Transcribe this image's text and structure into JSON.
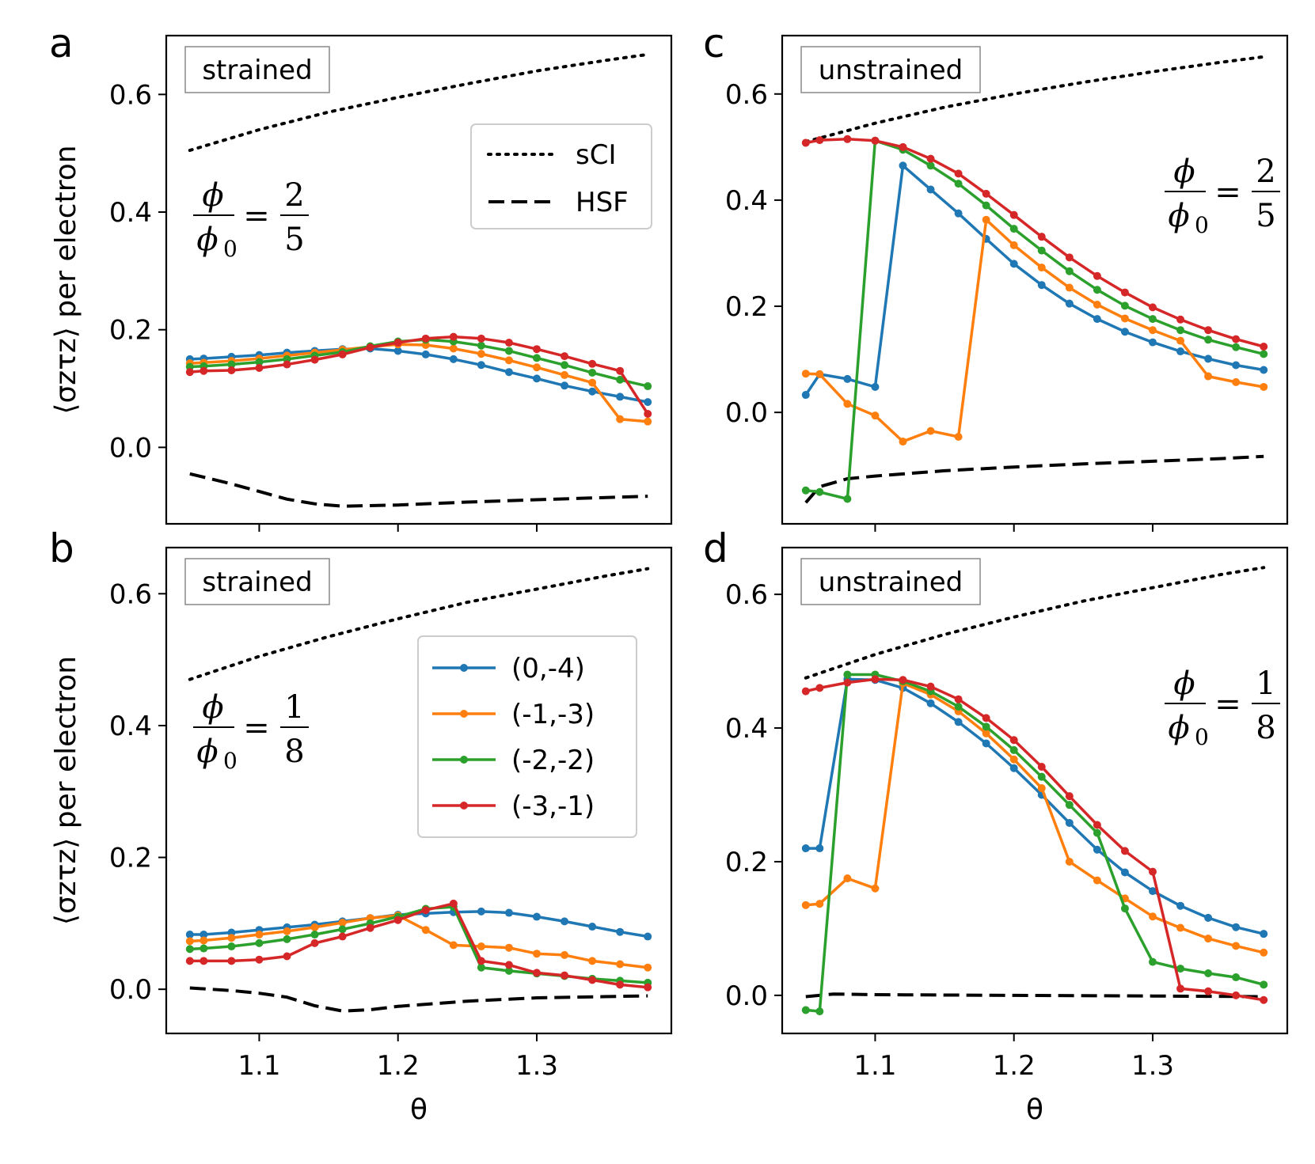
{
  "chart_data": [
    {
      "type": "line",
      "panel": "a",
      "condition": "strained",
      "flux": {
        "numerator": "2",
        "denominator": "5"
      },
      "xlabel": "θ",
      "ylabel": "⟨σzτz⟩ per electron",
      "xlim": [
        1.033,
        1.397
      ],
      "ylim": [
        -0.13,
        0.7
      ],
      "xticks": [
        1.1,
        1.2,
        1.3
      ],
      "yticks": [
        0.0,
        0.2,
        0.4,
        0.6
      ],
      "xticklabels": [
        "1.1",
        "1.2",
        "1.3"
      ],
      "yticklabels": [
        "0.0",
        "0.2",
        "0.4",
        "0.6"
      ],
      "x": [
        1.05,
        1.06,
        1.08,
        1.1,
        1.12,
        1.14,
        1.16,
        1.18,
        1.2,
        1.22,
        1.24,
        1.26,
        1.28,
        1.3,
        1.32,
        1.34,
        1.36,
        1.38
      ],
      "series": [
        {
          "name": "(0,-4)",
          "color": "#1f77b4",
          "values": [
            0.15,
            0.151,
            0.154,
            0.157,
            0.161,
            0.164,
            0.167,
            0.168,
            0.164,
            0.158,
            0.15,
            0.14,
            0.128,
            0.117,
            0.105,
            0.095,
            0.086,
            0.077
          ]
        },
        {
          "name": "(-1,-3)",
          "color": "#ff7f0e",
          "values": [
            0.143,
            0.144,
            0.147,
            0.151,
            0.156,
            0.161,
            0.166,
            0.171,
            0.175,
            0.174,
            0.168,
            0.159,
            0.148,
            0.136,
            0.123,
            0.11,
            0.048,
            0.044
          ]
        },
        {
          "name": "(-2,-2)",
          "color": "#2ca02c",
          "values": [
            0.137,
            0.138,
            0.141,
            0.145,
            0.15,
            0.156,
            0.162,
            0.172,
            0.18,
            0.183,
            0.18,
            0.173,
            0.164,
            0.152,
            0.14,
            0.127,
            0.115,
            0.104
          ]
        },
        {
          "name": "(-3,-1)",
          "color": "#d62728",
          "values": [
            0.128,
            0.13,
            0.131,
            0.135,
            0.141,
            0.149,
            0.158,
            0.17,
            0.178,
            0.185,
            0.188,
            0.185,
            0.178,
            0.167,
            0.155,
            0.142,
            0.13,
            0.057
          ]
        }
      ],
      "references": [
        {
          "name": "sCI",
          "style": "dotted",
          "x": [
            1.05,
            1.1,
            1.15,
            1.2,
            1.25,
            1.3,
            1.35,
            1.38
          ],
          "values": [
            0.505,
            0.54,
            0.57,
            0.595,
            0.618,
            0.64,
            0.658,
            0.668
          ]
        },
        {
          "name": "HSF",
          "style": "dashed",
          "x": [
            1.05,
            1.08,
            1.1,
            1.12,
            1.14,
            1.16,
            1.2,
            1.25,
            1.3,
            1.38
          ],
          "values": [
            -0.045,
            -0.062,
            -0.075,
            -0.088,
            -0.096,
            -0.1,
            -0.098,
            -0.093,
            -0.089,
            -0.083
          ]
        }
      ],
      "legend": {
        "position": "upper-right",
        "entries": [
          "sCI",
          "HSF"
        ]
      }
    },
    {
      "type": "line",
      "panel": "b",
      "condition": "strained",
      "flux": {
        "numerator": "1",
        "denominator": "8"
      },
      "xlabel": "θ",
      "ylabel": "⟨σzτz⟩ per electron",
      "xlim": [
        1.033,
        1.397
      ],
      "ylim": [
        -0.067,
        0.67
      ],
      "xticks": [
        1.1,
        1.2,
        1.3
      ],
      "yticks": [
        0.0,
        0.2,
        0.4,
        0.6
      ],
      "xticklabels": [
        "1.1",
        "1.2",
        "1.3"
      ],
      "yticklabels": [
        "0.0",
        "0.2",
        "0.4",
        "0.6"
      ],
      "x": [
        1.05,
        1.06,
        1.08,
        1.1,
        1.12,
        1.14,
        1.16,
        1.18,
        1.2,
        1.22,
        1.24,
        1.26,
        1.28,
        1.3,
        1.32,
        1.34,
        1.36,
        1.38
      ],
      "series": [
        {
          "name": "(0,-4)",
          "color": "#1f77b4",
          "values": [
            0.083,
            0.083,
            0.086,
            0.09,
            0.094,
            0.098,
            0.103,
            0.108,
            0.113,
            0.115,
            0.117,
            0.118,
            0.116,
            0.11,
            0.103,
            0.095,
            0.087,
            0.08
          ]
        },
        {
          "name": "(-1,-3)",
          "color": "#ff7f0e",
          "values": [
            0.073,
            0.074,
            0.078,
            0.083,
            0.088,
            0.094,
            0.101,
            0.108,
            0.112,
            0.09,
            0.067,
            0.065,
            0.063,
            0.054,
            0.052,
            0.043,
            0.038,
            0.033
          ]
        },
        {
          "name": "(-2,-2)",
          "color": "#2ca02c",
          "values": [
            0.061,
            0.062,
            0.065,
            0.07,
            0.076,
            0.083,
            0.091,
            0.1,
            0.11,
            0.122,
            0.125,
            0.033,
            0.028,
            0.024,
            0.02,
            0.016,
            0.013,
            0.01
          ]
        },
        {
          "name": "(-3,-1)",
          "color": "#d62728",
          "values": [
            0.043,
            0.043,
            0.043,
            0.045,
            0.05,
            0.07,
            0.08,
            0.093,
            0.105,
            0.12,
            0.13,
            0.043,
            0.037,
            0.025,
            0.021,
            0.014,
            0.007,
            0.003
          ]
        }
      ],
      "references": [
        {
          "name": "sCI",
          "style": "dotted",
          "x": [
            1.05,
            1.1,
            1.15,
            1.2,
            1.25,
            1.3,
            1.35,
            1.38
          ],
          "values": [
            0.47,
            0.505,
            0.535,
            0.562,
            0.587,
            0.607,
            0.627,
            0.638
          ]
        },
        {
          "name": "HSF",
          "style": "dashed",
          "x": [
            1.05,
            1.08,
            1.1,
            1.12,
            1.14,
            1.16,
            1.18,
            1.2,
            1.25,
            1.3,
            1.38
          ],
          "values": [
            0.002,
            -0.002,
            -0.006,
            -0.012,
            -0.025,
            -0.033,
            -0.031,
            -0.026,
            -0.018,
            -0.013,
            -0.01
          ]
        }
      ],
      "legend": {
        "position": "upper-right",
        "entries": [
          "(0,-4)",
          "(-1,-3)",
          "(-2,-2)",
          "(-3,-1)"
        ]
      }
    },
    {
      "type": "line",
      "panel": "c",
      "condition": "unstrained",
      "flux": {
        "numerator": "2",
        "denominator": "5"
      },
      "xlabel": "θ",
      "ylabel": "",
      "xlim": [
        1.033,
        1.397
      ],
      "ylim": [
        -0.21,
        0.71
      ],
      "xticks": [
        1.1,
        1.2,
        1.3
      ],
      "yticks": [
        0.0,
        0.2,
        0.4,
        0.6
      ],
      "xticklabels": [
        "1.1",
        "1.2",
        "1.3"
      ],
      "yticklabels": [
        "0.0",
        "0.2",
        "0.4",
        "0.6"
      ],
      "x": [
        1.05,
        1.06,
        1.08,
        1.1,
        1.12,
        1.14,
        1.16,
        1.18,
        1.2,
        1.22,
        1.24,
        1.26,
        1.28,
        1.3,
        1.32,
        1.34,
        1.36,
        1.38
      ],
      "series": [
        {
          "name": "(0,-4)",
          "color": "#1f77b4",
          "values": [
            0.033,
            0.072,
            0.063,
            0.048,
            0.465,
            0.42,
            0.375,
            0.327,
            0.28,
            0.24,
            0.205,
            0.176,
            0.152,
            0.132,
            0.115,
            0.101,
            0.089,
            0.08
          ]
        },
        {
          "name": "(-1,-3)",
          "color": "#ff7f0e",
          "values": [
            0.073,
            0.072,
            0.016,
            -0.006,
            -0.055,
            -0.035,
            -0.046,
            0.363,
            0.315,
            0.273,
            0.235,
            0.203,
            0.177,
            0.155,
            0.135,
            0.068,
            0.057,
            0.048
          ]
        },
        {
          "name": "(-2,-2)",
          "color": "#2ca02c",
          "values": [
            -0.147,
            -0.15,
            -0.163,
            0.512,
            0.495,
            0.465,
            0.431,
            0.39,
            0.346,
            0.305,
            0.266,
            0.231,
            0.201,
            0.176,
            0.155,
            0.137,
            0.123,
            0.11
          ]
        },
        {
          "name": "(-3,-1)",
          "color": "#d62728",
          "values": [
            0.508,
            0.513,
            0.515,
            0.512,
            0.5,
            0.478,
            0.45,
            0.412,
            0.372,
            0.331,
            0.292,
            0.257,
            0.226,
            0.198,
            0.175,
            0.155,
            0.138,
            0.124
          ]
        }
      ],
      "references": [
        {
          "name": "sCI",
          "style": "dotted",
          "x": [
            1.05,
            1.1,
            1.15,
            1.2,
            1.25,
            1.3,
            1.35,
            1.38
          ],
          "values": [
            0.51,
            0.545,
            0.575,
            0.6,
            0.622,
            0.642,
            0.66,
            0.67
          ]
        },
        {
          "name": "HSF",
          "style": "dashed",
          "x": [
            1.05,
            1.06,
            1.08,
            1.1,
            1.15,
            1.2,
            1.25,
            1.3,
            1.35,
            1.38
          ],
          "values": [
            -0.17,
            -0.14,
            -0.125,
            -0.12,
            -0.11,
            -0.103,
            -0.097,
            -0.092,
            -0.087,
            -0.083
          ]
        }
      ]
    },
    {
      "type": "line",
      "panel": "d",
      "condition": "unstrained",
      "flux": {
        "numerator": "1",
        "denominator": "8"
      },
      "xlabel": "θ",
      "ylabel": "",
      "xlim": [
        1.033,
        1.397
      ],
      "ylim": [
        -0.057,
        0.67
      ],
      "xticks": [
        1.1,
        1.2,
        1.3
      ],
      "yticks": [
        0.0,
        0.2,
        0.4,
        0.6
      ],
      "xticklabels": [
        "1.1",
        "1.2",
        "1.3"
      ],
      "yticklabels": [
        "0.0",
        "0.2",
        "0.4",
        "0.6"
      ],
      "x": [
        1.05,
        1.06,
        1.08,
        1.1,
        1.12,
        1.14,
        1.16,
        1.18,
        1.2,
        1.22,
        1.24,
        1.26,
        1.28,
        1.3,
        1.32,
        1.34,
        1.36,
        1.38
      ],
      "series": [
        {
          "name": "(0,-4)",
          "color": "#1f77b4",
          "values": [
            0.22,
            0.22,
            0.473,
            0.472,
            0.46,
            0.437,
            0.409,
            0.377,
            0.34,
            0.3,
            0.258,
            0.218,
            0.184,
            0.156,
            0.134,
            0.116,
            0.102,
            0.092
          ]
        },
        {
          "name": "(-1,-3)",
          "color": "#ff7f0e",
          "values": [
            0.135,
            0.137,
            0.175,
            0.16,
            0.467,
            0.45,
            0.425,
            0.392,
            0.353,
            0.31,
            0.2,
            0.172,
            0.145,
            0.118,
            0.101,
            0.085,
            0.074,
            0.064
          ]
        },
        {
          "name": "(-2,-2)",
          "color": "#2ca02c",
          "values": [
            -0.022,
            -0.024,
            0.48,
            0.48,
            0.47,
            0.455,
            0.432,
            0.402,
            0.367,
            0.327,
            0.285,
            0.243,
            0.13,
            0.05,
            0.04,
            0.033,
            0.027,
            0.016
          ]
        },
        {
          "name": "(-3,-1)",
          "color": "#d62728",
          "values": [
            0.455,
            0.46,
            0.468,
            0.473,
            0.472,
            0.462,
            0.443,
            0.415,
            0.382,
            0.342,
            0.298,
            0.255,
            0.216,
            0.185,
            0.01,
            0.006,
            0.0,
            -0.007
          ]
        }
      ],
      "references": [
        {
          "name": "sCI",
          "style": "dotted",
          "x": [
            1.05,
            1.1,
            1.15,
            1.2,
            1.25,
            1.3,
            1.35,
            1.38
          ],
          "values": [
            0.475,
            0.51,
            0.54,
            0.566,
            0.59,
            0.61,
            0.63,
            0.64
          ]
        },
        {
          "name": "HSF",
          "style": "dashed",
          "x": [
            1.05,
            1.07,
            1.1,
            1.2,
            1.3,
            1.38
          ],
          "values": [
            -0.002,
            0.002,
            0.001,
            0.0,
            -0.001,
            -0.002
          ]
        }
      ]
    }
  ]
}
